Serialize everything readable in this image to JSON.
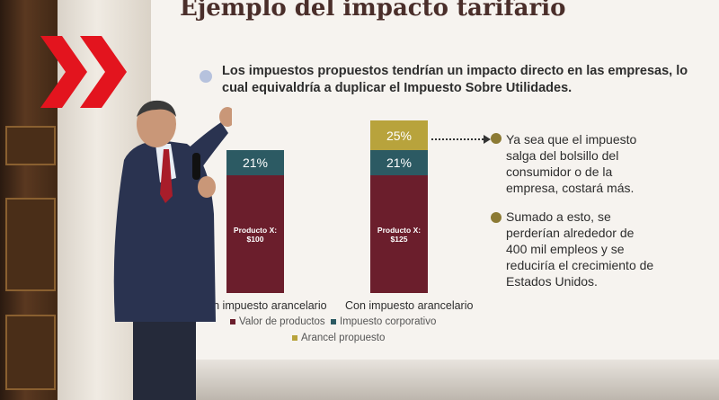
{
  "slide": {
    "title": "Ejemplo del impacto tarifario",
    "intro": "Los impuestos propuestos tendrían un impacto directo en las empresas, lo cual equivaldría a duplicar el Impuesto Sobre Utilidades.",
    "points": [
      "Ya sea que el impuesto salga del bolsillo del consumidor o de la empresa, costará más.",
      "Sumado a esto, se perderían alrededor de 400 mil empleos y se reduciría el crecimiento de Estados Unidos."
    ]
  },
  "chart_data": {
    "type": "bar",
    "categories": [
      "Sin impuesto arancelario",
      "Con impuesto arancelario"
    ],
    "bar_texts": [
      {
        "product": "Producto X:",
        "price": "$100",
        "corporate": "21%"
      },
      {
        "product": "Producto X:",
        "price": "$125",
        "corporate": "21%",
        "tariff": "25%"
      }
    ],
    "series": [
      {
        "name": "Valor de productos",
        "color": "#6b1e2c"
      },
      {
        "name": "Impuesto corporativo",
        "color": "#2c5a63",
        "values": [
          21,
          21
        ]
      },
      {
        "name": "Arancel propuesto",
        "color": "#b8a33c",
        "values": [
          0,
          25
        ]
      }
    ]
  },
  "colors": {
    "accent_dot": "#b6c2dd",
    "olive_dot": "#8c7a34",
    "logo_red": "#e3141e"
  },
  "icons": {
    "logo": "double-chevron-logo"
  }
}
